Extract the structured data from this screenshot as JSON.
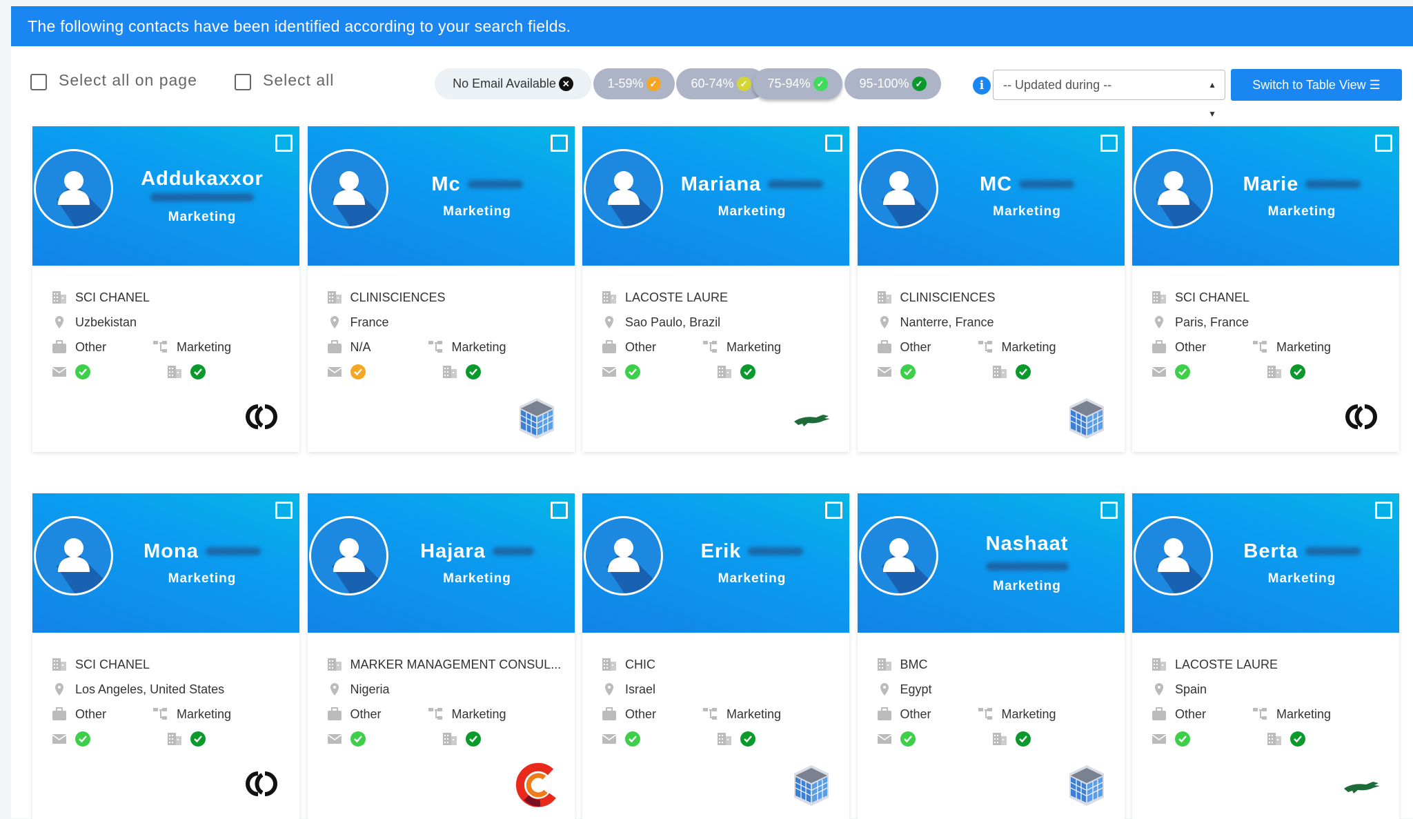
{
  "banner": {
    "text": "The following contacts have been identified according to your search fields."
  },
  "toolbar": {
    "select_page": "Select all on page",
    "select_all": "Select all",
    "filters": [
      {
        "label": "No Email Available",
        "icon": "x-circle",
        "color": "#111111",
        "style": "light"
      },
      {
        "label": "1-59%",
        "icon": "check-circle",
        "color": "#f5a623",
        "style": "grey"
      },
      {
        "label": "60-74%",
        "icon": "check-circle",
        "color": "#d4d633",
        "style": "grey"
      },
      {
        "label": "75-94%",
        "icon": "check-circle",
        "color": "#3ddc5a",
        "style": "grey"
      },
      {
        "label": "95-100%",
        "icon": "check-circle",
        "color": "#0a9a2c",
        "style": "grey"
      }
    ],
    "info_icon": "i",
    "updated_select": "-- Updated during --",
    "switch_button": "Switch to Table View"
  },
  "colors": {
    "accent": "#1a86f2",
    "email_ok": "#3ecf4a",
    "email_medium": "#f5a623",
    "company_ok": "#0a9a2c"
  },
  "contacts": [
    {
      "first": "Addukaxxor",
      "position": "Marketing",
      "company": "SCI CHANEL",
      "location": "Uzbekistan",
      "category": "Other",
      "department": "Marketing",
      "email_status": "ok",
      "logo": "chanel"
    },
    {
      "first": "Mc",
      "position": "Marketing",
      "company": "CLINISCIENCES",
      "location": "France",
      "category": "N/A",
      "department": "Marketing",
      "email_status": "medium",
      "logo": "building"
    },
    {
      "first": "Mariana",
      "position": "Marketing",
      "company": "LACOSTE LAURE",
      "location": "Sao Paulo, Brazil",
      "category": "Other",
      "department": "Marketing",
      "email_status": "ok",
      "logo": "lacoste"
    },
    {
      "first": "MC",
      "position": "Marketing",
      "company": "CLINISCIENCES",
      "location": "Nanterre, France",
      "category": "Other",
      "department": "Marketing",
      "email_status": "ok",
      "logo": "building"
    },
    {
      "first": "Marie",
      "position": "Marketing",
      "company": "SCI CHANEL",
      "location": "Paris, France",
      "category": "Other",
      "department": "Marketing",
      "email_status": "ok",
      "logo": "chanel"
    },
    {
      "first": "Mona",
      "position": "Marketing",
      "company": "SCI CHANEL",
      "location": "Los Angeles, United States",
      "category": "Other",
      "department": "Marketing",
      "email_status": "ok",
      "logo": "chanel"
    },
    {
      "first": "Hajara",
      "position": "Marketing",
      "company": "MARKER MANAGEMENT CONSUL...",
      "location": "Nigeria",
      "category": "Other",
      "department": "Marketing",
      "email_status": "ok",
      "logo": "c-logo"
    },
    {
      "first": "Erik",
      "position": "Marketing",
      "company": "CHIC",
      "location": "Israel",
      "category": "Other",
      "department": "Marketing",
      "email_status": "ok",
      "logo": "building"
    },
    {
      "first": "Nashaat",
      "position": "Marketing",
      "company": "BMC",
      "location": "Egypt",
      "category": "Other",
      "department": "Marketing",
      "email_status": "ok",
      "logo": "building"
    },
    {
      "first": "Berta",
      "position": "Marketing",
      "company": "LACOSTE LAURE",
      "location": "Spain",
      "category": "Other",
      "department": "Marketing",
      "email_status": "ok",
      "logo": "lacoste"
    }
  ]
}
